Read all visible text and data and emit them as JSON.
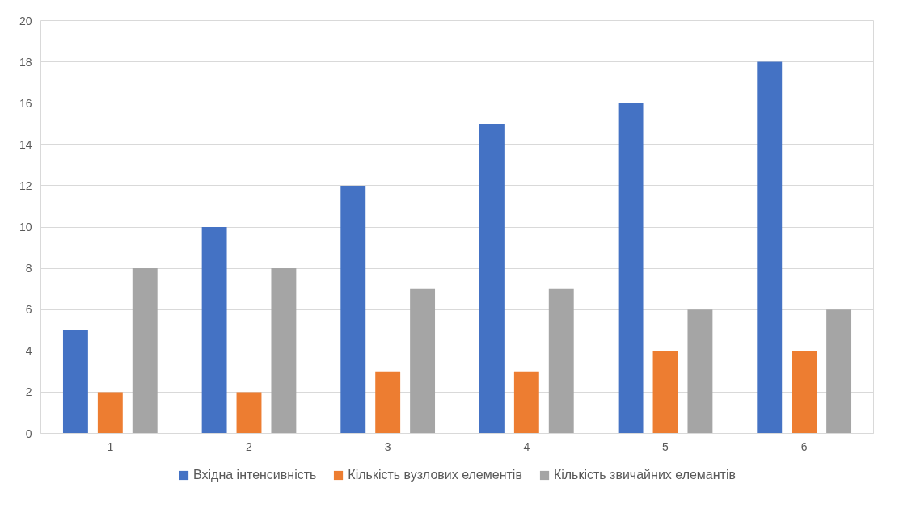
{
  "chart_data": {
    "type": "bar",
    "categories": [
      "1",
      "2",
      "3",
      "4",
      "5",
      "6"
    ],
    "series": [
      {
        "name": "Вхідна інтенсивність",
        "color": "#4472c4",
        "values": [
          5,
          10,
          12,
          15,
          16,
          18
        ]
      },
      {
        "name": "Кількість вузлових елементів",
        "color": "#ed7d31",
        "values": [
          2,
          2,
          3,
          3,
          4,
          4
        ]
      },
      {
        "name": "Кількість звичайних елемантів",
        "color": "#a5a5a5",
        "values": [
          8,
          8,
          7,
          7,
          6,
          6
        ]
      }
    ],
    "ylim": [
      0,
      20
    ],
    "yticks": [
      0,
      2,
      4,
      6,
      8,
      10,
      12,
      14,
      16,
      18,
      20
    ],
    "grid": "y",
    "legend": "bottom"
  }
}
